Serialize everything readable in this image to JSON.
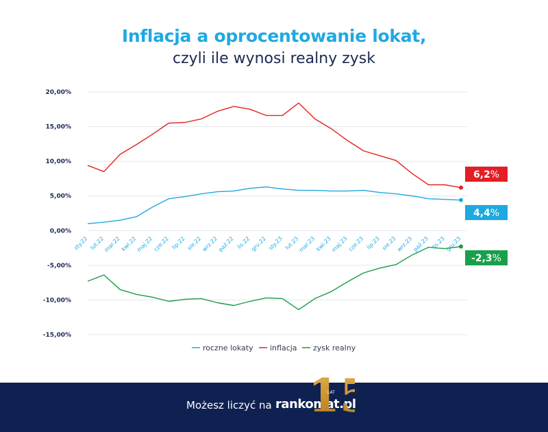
{
  "header": {
    "title": "Inflacja a oprocentowanie lokat,",
    "subtitle": "czyli ile wynosi realny zysk"
  },
  "chart_data": {
    "type": "line",
    "categories": [
      "sty.22",
      "lut.22",
      "mar.22",
      "kwi.22",
      "maj.22",
      "cze.22",
      "lip.22",
      "sie.22",
      "wrz.22",
      "paź.22",
      "lis.22",
      "gru.22",
      "sty.23",
      "lut.23",
      "mar.23",
      "kwi.23",
      "maj.23",
      "cze.23",
      "lip.23",
      "sie.23",
      "wrz.23",
      "paź.23",
      "lis.23",
      "gru.23"
    ],
    "series": [
      {
        "name": "roczne lokaty",
        "color": "#1ea9e0",
        "values": [
          1.0,
          1.2,
          1.5,
          2.0,
          3.4,
          4.6,
          4.9,
          5.3,
          5.6,
          5.7,
          6.1,
          6.3,
          6.0,
          5.8,
          5.8,
          5.7,
          5.7,
          5.8,
          5.5,
          5.3,
          5.0,
          4.6,
          4.5,
          4.4
        ]
      },
      {
        "name": "inflacja",
        "color": "#e32222",
        "values": [
          9.4,
          8.5,
          11.0,
          12.4,
          13.9,
          15.5,
          15.6,
          16.1,
          17.2,
          17.9,
          17.5,
          16.6,
          16.6,
          18.4,
          16.1,
          14.7,
          13.0,
          11.5,
          10.8,
          10.1,
          8.2,
          6.6,
          6.6,
          6.2
        ]
      },
      {
        "name": "zysk realny",
        "color": "#1a9b48",
        "values": [
          -7.3,
          -6.4,
          -8.5,
          -9.2,
          -9.6,
          -10.2,
          -9.9,
          -9.8,
          -10.4,
          -10.8,
          -10.2,
          -9.7,
          -9.8,
          -11.4,
          -9.8,
          -8.8,
          -7.4,
          -6.1,
          -5.4,
          -4.9,
          -3.5,
          -2.4,
          -2.6,
          -2.3
        ]
      }
    ],
    "end_labels": [
      {
        "series": 1,
        "value": "6,2",
        "unit": "%",
        "color": "#e31e24"
      },
      {
        "series": 0,
        "value": "4,4",
        "unit": "%",
        "color": "#1ea9e0"
      },
      {
        "series": 2,
        "value": "-2,3",
        "unit": "%",
        "color": "#17a04a"
      }
    ],
    "y_ticks": [
      "20,00%",
      "15,00%",
      "10,00%",
      "5,00%",
      "0,00%",
      "-5,00%",
      "-10,00%",
      "-15,00%"
    ],
    "ylim": [
      -15,
      20
    ],
    "grid": true,
    "legend_position": "bottom"
  },
  "footer": {
    "text": "Możesz liczyć na",
    "brand": "rankomat.pl",
    "badge_number": "15",
    "badge_label": "LAT"
  }
}
